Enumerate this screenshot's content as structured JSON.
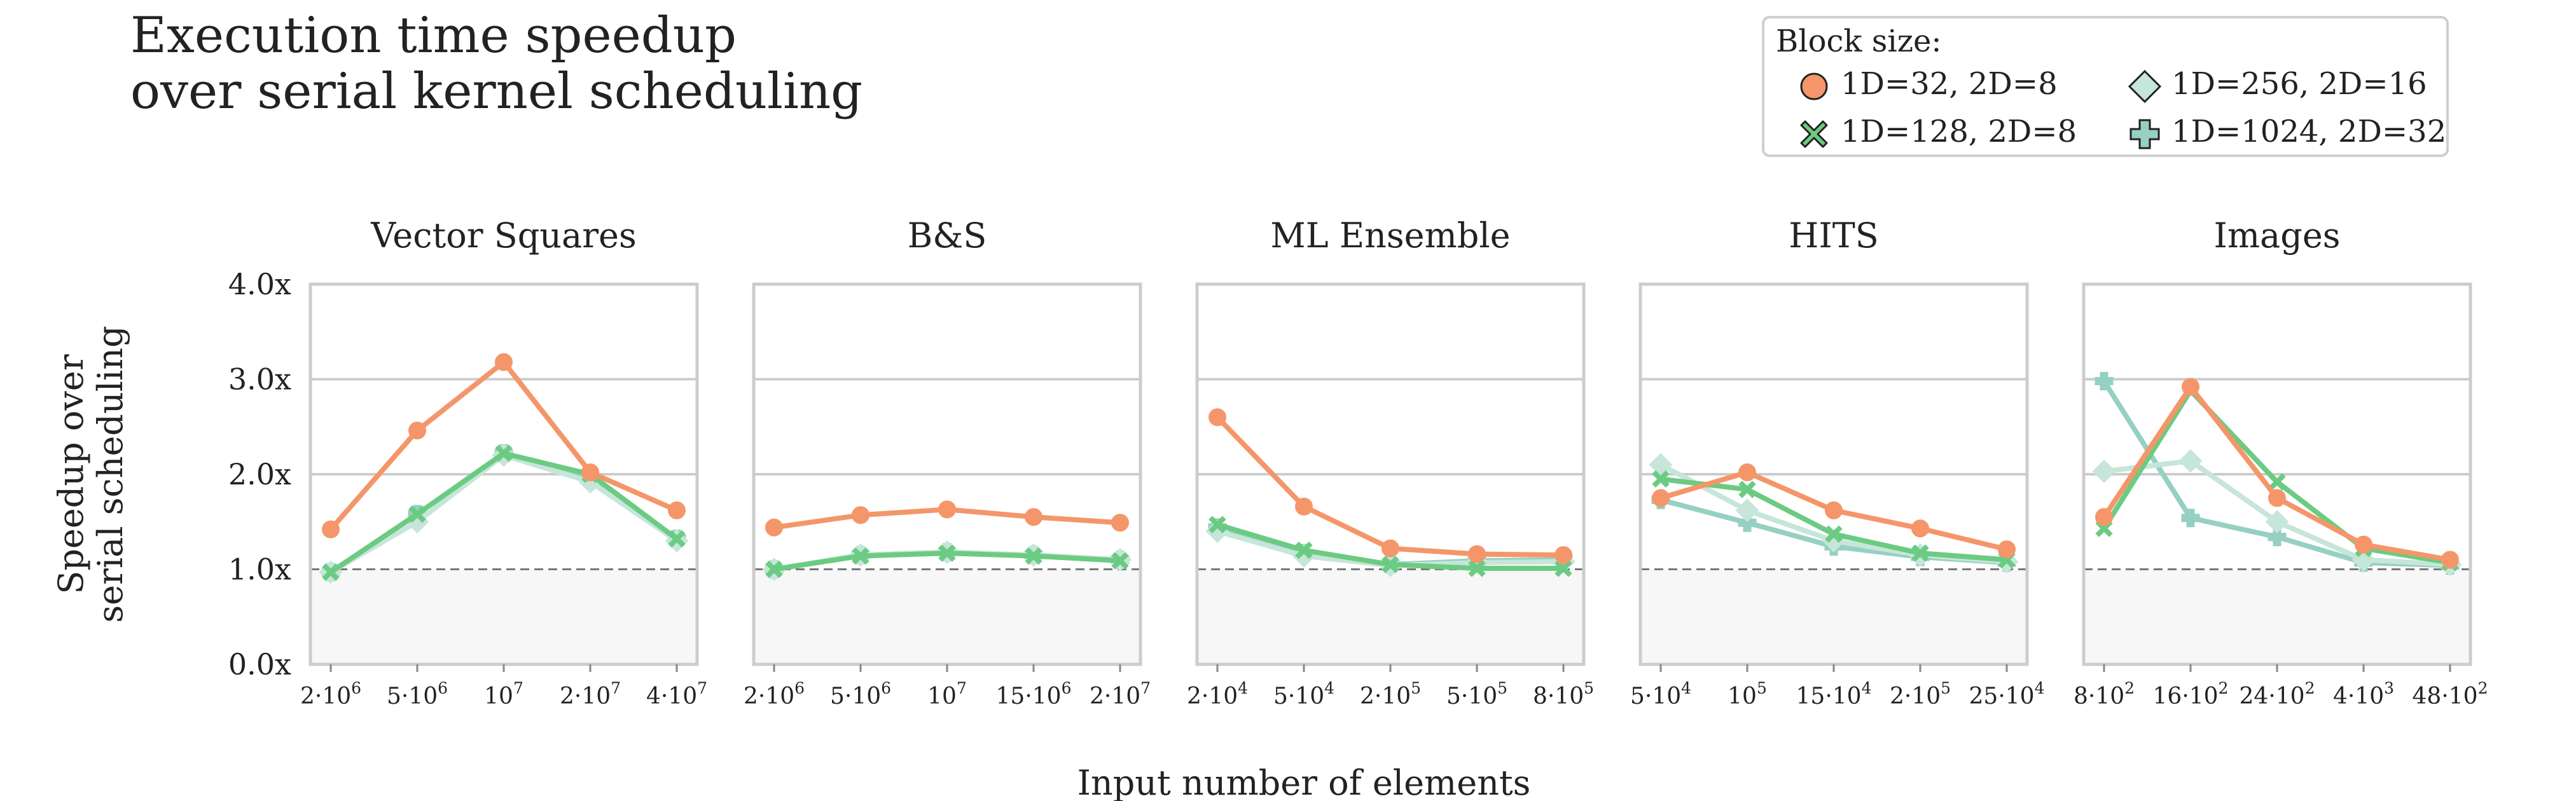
{
  "title_line1": "Execution time speedup",
  "title_line2": "over serial kernel scheduling",
  "legend": {
    "title": "Block size:",
    "items": [
      {
        "label": "1D=32, 2D=8",
        "marker": "circle",
        "color": "#F4966A"
      },
      {
        "label": "1D=128, 2D=8",
        "marker": "x",
        "color": "#6CCB82"
      },
      {
        "label": "1D=256, 2D=16",
        "marker": "diamond",
        "color": "#C5E6D9"
      },
      {
        "label": "1D=1024, 2D=32",
        "marker": "plus",
        "color": "#96D0C3"
      }
    ]
  },
  "chart_data": {
    "type": "line",
    "ylabel_line1": "Speedup over",
    "ylabel_line2": "serial scheduling",
    "xlabel": "Input number of elements",
    "ylim": [
      0,
      4
    ],
    "yticks": [
      "0.0x",
      "1.0x",
      "2.0x",
      "3.0x",
      "4.0x"
    ],
    "ytick_values": [
      0,
      1,
      2,
      3,
      4
    ],
    "baseline": 1.0,
    "grid": "horizontal",
    "panels": [
      {
        "title": "Vector Squares",
        "categories": [
          {
            "base": "2·10",
            "exp": "6"
          },
          {
            "base": "5·10",
            "exp": "6"
          },
          {
            "base": "10",
            "exp": "7"
          },
          {
            "base": "2·10",
            "exp": "7"
          },
          {
            "base": "4·10",
            "exp": "7"
          }
        ],
        "series": [
          {
            "name": "1D=32, 2D=8",
            "values": [
              1.42,
              2.46,
              3.18,
              2.02,
              1.62
            ]
          },
          {
            "name": "1D=128, 2D=8",
            "values": [
              0.97,
              1.58,
              2.22,
              2.0,
              1.32
            ]
          },
          {
            "name": "1D=256, 2D=16",
            "values": [
              0.97,
              1.5,
              2.2,
              1.92,
              1.3
            ]
          },
          {
            "name": "1D=1024, 2D=32",
            "values": [
              0.97,
              1.58,
              2.22,
              1.96,
              1.32
            ]
          }
        ]
      },
      {
        "title": "B&S",
        "categories": [
          {
            "base": "2·10",
            "exp": "6"
          },
          {
            "base": "5·10",
            "exp": "6"
          },
          {
            "base": "10",
            "exp": "7"
          },
          {
            "base": "15·10",
            "exp": "6"
          },
          {
            "base": "2·10",
            "exp": "7"
          }
        ],
        "series": [
          {
            "name": "1D=32, 2D=8",
            "values": [
              1.44,
              1.57,
              1.63,
              1.55,
              1.49
            ]
          },
          {
            "name": "1D=128, 2D=8",
            "values": [
              1.0,
              1.14,
              1.17,
              1.14,
              1.09
            ]
          },
          {
            "name": "1D=256, 2D=16",
            "values": [
              1.0,
              1.15,
              1.18,
              1.15,
              1.1
            ]
          },
          {
            "name": "1D=1024, 2D=32",
            "values": [
              1.0,
              1.15,
              1.18,
              1.15,
              1.1
            ]
          }
        ]
      },
      {
        "title": "ML Ensemble",
        "categories": [
          {
            "base": "2·10",
            "exp": "4"
          },
          {
            "base": "5·10",
            "exp": "4"
          },
          {
            "base": "2·10",
            "exp": "5"
          },
          {
            "base": "5·10",
            "exp": "5"
          },
          {
            "base": "8·10",
            "exp": "5"
          }
        ],
        "series": [
          {
            "name": "1D=32, 2D=8",
            "values": [
              2.6,
              1.66,
              1.22,
              1.16,
              1.15
            ]
          },
          {
            "name": "1D=128, 2D=8",
            "values": [
              1.47,
              1.2,
              1.05,
              1.01,
              1.01
            ]
          },
          {
            "name": "1D=256, 2D=16",
            "values": [
              1.4,
              1.14,
              1.04,
              1.07,
              1.08
            ]
          },
          {
            "name": "1D=1024, 2D=32",
            "values": [
              1.44,
              1.17,
              1.05,
              1.09,
              1.1
            ]
          }
        ]
      },
      {
        "title": "HITS",
        "categories": [
          {
            "base": "5·10",
            "exp": "4"
          },
          {
            "base": "10",
            "exp": "5"
          },
          {
            "base": "15·10",
            "exp": "4"
          },
          {
            "base": "2·10",
            "exp": "5"
          },
          {
            "base": "25·10",
            "exp": "4"
          }
        ],
        "series": [
          {
            "name": "1D=32, 2D=8",
            "values": [
              1.75,
              2.02,
              1.62,
              1.43,
              1.21
            ]
          },
          {
            "name": "1D=128, 2D=8",
            "values": [
              1.95,
              1.84,
              1.37,
              1.17,
              1.1
            ]
          },
          {
            "name": "1D=256, 2D=16",
            "values": [
              2.1,
              1.62,
              1.3,
              1.15,
              1.08
            ]
          },
          {
            "name": "1D=1024, 2D=32",
            "values": [
              1.73,
              1.49,
              1.24,
              1.13,
              1.07
            ]
          }
        ]
      },
      {
        "title": "Images",
        "categories": [
          {
            "base": "8·10",
            "exp": "2"
          },
          {
            "base": "16·10",
            "exp": "2"
          },
          {
            "base": "24·10",
            "exp": "2"
          },
          {
            "base": "4·10",
            "exp": "3"
          },
          {
            "base": "48·10",
            "exp": "2"
          }
        ],
        "series": [
          {
            "name": "1D=32, 2D=8",
            "values": [
              1.55,
              2.92,
              1.75,
              1.26,
              1.1
            ]
          },
          {
            "name": "1D=128, 2D=8",
            "values": [
              1.43,
              2.88,
              1.92,
              1.22,
              1.07
            ]
          },
          {
            "name": "1D=256, 2D=16",
            "values": [
              2.03,
              2.14,
              1.5,
              1.1,
              1.05
            ]
          },
          {
            "name": "1D=1024, 2D=32",
            "values": [
              2.98,
              1.54,
              1.34,
              1.07,
              1.04
            ]
          }
        ]
      }
    ]
  }
}
